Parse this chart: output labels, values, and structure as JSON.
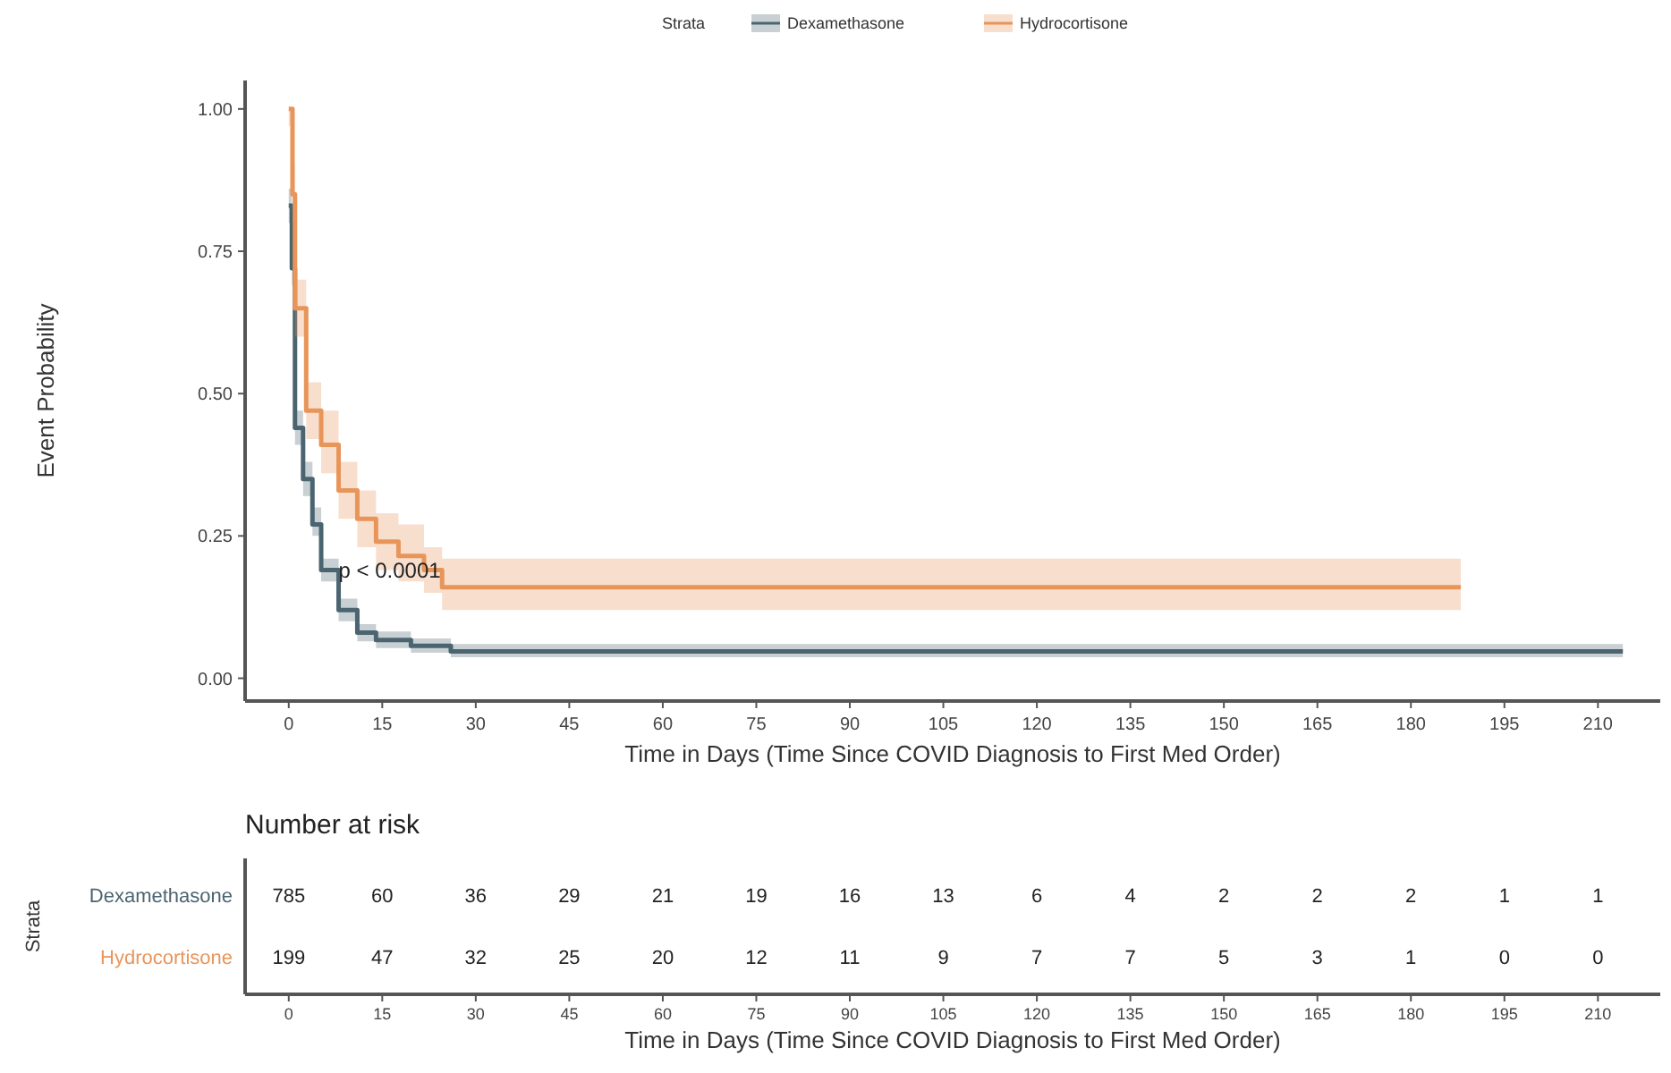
{
  "chart_data": [
    {
      "type": "step",
      "xlabel": "Time in Days (Time Since COVID Diagnosis to First Med Order)",
      "ylabel": "Event Probability",
      "legend_title": "Strata",
      "legend": "top",
      "grid": false,
      "marker": "none",
      "line_style": "solid",
      "annotations": [
        "p < 0.0001"
      ],
      "xlim": [
        -7,
        220
      ],
      "xticks": [
        0,
        15,
        30,
        45,
        60,
        75,
        90,
        105,
        120,
        135,
        150,
        165,
        180,
        195,
        210
      ],
      "ylim": [
        -0.04,
        1.05
      ],
      "yticks": [
        {
          "value": 0,
          "label": "0.00"
        },
        {
          "value": 0.25,
          "label": "0.25"
        },
        {
          "value": 0.5,
          "label": "0.50"
        },
        {
          "value": 0.75,
          "label": "0.75"
        },
        {
          "value": 1,
          "label": "1.00"
        }
      ],
      "series": [
        {
          "name": "Dexamethasone",
          "color": "#4a6470",
          "x": [
            0,
            0.5,
            1,
            2.3,
            3.8,
            5.2,
            8,
            11,
            14,
            19.6,
            26,
            214
          ],
          "values": [
            0.83,
            0.72,
            0.44,
            0.35,
            0.27,
            0.19,
            0.12,
            0.08,
            0.067,
            0.057,
            0.047,
            0.047
          ],
          "lower": [
            0.8,
            0.69,
            0.41,
            0.32,
            0.25,
            0.17,
            0.1,
            0.065,
            0.053,
            0.045,
            0.037,
            0.037
          ],
          "upper": [
            0.86,
            0.75,
            0.47,
            0.38,
            0.3,
            0.21,
            0.14,
            0.095,
            0.082,
            0.07,
            0.06,
            0.06
          ]
        },
        {
          "name": "Hydrocortisone",
          "color": "#e8955a",
          "x": [
            0,
            0.6,
            1,
            2.8,
            5.2,
            8,
            11,
            14,
            17.6,
            21.7,
            24.6,
            188
          ],
          "values": [
            1,
            0.85,
            0.65,
            0.47,
            0.41,
            0.33,
            0.28,
            0.24,
            0.215,
            0.19,
            0.16,
            0.16
          ],
          "lower": [
            0.97,
            0.8,
            0.6,
            0.42,
            0.36,
            0.28,
            0.23,
            0.19,
            0.17,
            0.15,
            0.12,
            0.12
          ],
          "upper": [
            1,
            0.9,
            0.7,
            0.52,
            0.47,
            0.38,
            0.33,
            0.29,
            0.27,
            0.23,
            0.21,
            0.21
          ]
        }
      ]
    },
    {
      "type": "heatmap",
      "title": "Number at risk",
      "xlabel": "Time in Days (Time Since COVID Diagnosis to First Med Order)",
      "ylabel": "Strata",
      "categories": [
        "0",
        "15",
        "30",
        "45",
        "60",
        "75",
        "90",
        "105",
        "120",
        "135",
        "150",
        "165",
        "180",
        "195",
        "210"
      ],
      "y_categories": [
        "Dexamethasone",
        "Hydrocortisone"
      ],
      "colors": [
        "#4a6470",
        "#e8955a"
      ],
      "cells": [
        [
          785,
          60,
          36,
          29,
          21,
          19,
          16,
          13,
          6,
          4,
          2,
          2,
          2,
          1,
          1
        ],
        [
          199,
          47,
          32,
          25,
          20,
          12,
          11,
          9,
          7,
          7,
          5,
          3,
          1,
          0,
          0
        ]
      ],
      "data_labels": true
    }
  ]
}
